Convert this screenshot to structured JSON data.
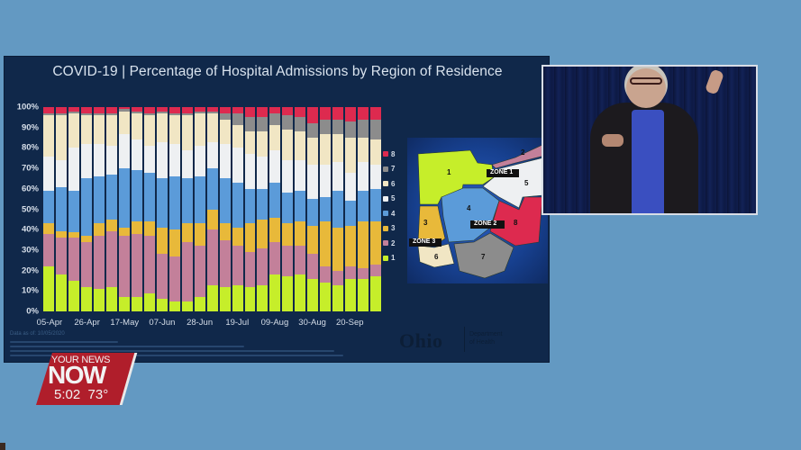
{
  "broadcast": {
    "bug_line1": "YOUR NEWS",
    "bug_line2": "NOW",
    "time": "5:02",
    "temperature": "73°",
    "bug_color": "#b01e2b",
    "background_color": "#6399c2"
  },
  "slide": {
    "title": "COVID-19 | Percentage of Hospital Admissions by Region of Residence",
    "data_as_of": "Data as of: 10/05/2020",
    "logo_text": "Ohio",
    "logo_subtext_line1": "Department",
    "logo_subtext_line2": "of Health"
  },
  "legend": {
    "items": [
      {
        "label": "8",
        "color": "#dd2a4f"
      },
      {
        "label": "7",
        "color": "#8c8c8c"
      },
      {
        "label": "6",
        "color": "#f1e6c4"
      },
      {
        "label": "5",
        "color": "#eef0f2"
      },
      {
        "label": "4",
        "color": "#5b9bd9"
      },
      {
        "label": "3",
        "color": "#e8b93a"
      },
      {
        "label": "2",
        "color": "#c3809a"
      },
      {
        "label": "1",
        "color": "#c6ee2a"
      }
    ]
  },
  "map": {
    "zone_labels": [
      "ZONE 1",
      "ZONE 2",
      "ZONE 3"
    ],
    "region_numbers": [
      "1",
      "2",
      "3",
      "4",
      "5",
      "6",
      "7",
      "8"
    ]
  },
  "chart_data": {
    "type": "bar",
    "stacked": true,
    "title": "COVID-19 | Percentage of Hospital Admissions by Region of Residence",
    "xlabel": "",
    "ylabel": "",
    "ylim": [
      0,
      100
    ],
    "y_ticks": [
      "0%",
      "10%",
      "20%",
      "30%",
      "40%",
      "50%",
      "60%",
      "70%",
      "80%",
      "90%",
      "100%"
    ],
    "x_tick_labels": [
      "05-Apr",
      "26-Apr",
      "17-May",
      "07-Jun",
      "28-Jun",
      "19-Jul",
      "09-Aug",
      "30-Aug",
      "20-Sep"
    ],
    "categories": [
      "05-Apr",
      "12-Apr",
      "19-Apr",
      "26-Apr",
      "03-May",
      "10-May",
      "17-May",
      "24-May",
      "31-May",
      "07-Jun",
      "14-Jun",
      "21-Jun",
      "28-Jun",
      "05-Jul",
      "12-Jul",
      "19-Jul",
      "26-Jul",
      "02-Aug",
      "09-Aug",
      "16-Aug",
      "23-Aug",
      "30-Aug",
      "06-Sep",
      "13-Sep",
      "20-Sep",
      "27-Sep",
      "04-Oct"
    ],
    "legend_position": "right",
    "grid": false,
    "series": [
      {
        "name": "1",
        "color": "#c6ee2a",
        "values": [
          22,
          18,
          15,
          12,
          11,
          12,
          7,
          7,
          9,
          6,
          5,
          5,
          7,
          13,
          12,
          13,
          12,
          13,
          18,
          17,
          18,
          16,
          14,
          13,
          16,
          16,
          17
        ]
      },
      {
        "name": "2",
        "color": "#c3809a",
        "values": [
          16,
          18,
          21,
          22,
          26,
          27,
          30,
          31,
          28,
          22,
          22,
          29,
          25,
          27,
          23,
          19,
          17,
          18,
          16,
          15,
          14,
          12,
          8,
          7,
          6,
          5,
          6
        ]
      },
      {
        "name": "3",
        "color": "#e8b93a",
        "values": [
          5,
          3,
          3,
          3,
          6,
          6,
          4,
          6,
          7,
          13,
          13,
          9,
          11,
          10,
          8,
          9,
          14,
          14,
          12,
          11,
          12,
          14,
          22,
          21,
          20,
          23,
          21
        ]
      },
      {
        "name": "4",
        "color": "#5b9bd9",
        "values": [
          16,
          22,
          20,
          28,
          23,
          22,
          29,
          25,
          24,
          24,
          26,
          22,
          23,
          20,
          22,
          22,
          17,
          15,
          17,
          15,
          15,
          13,
          12,
          18,
          12,
          15,
          16
        ]
      },
      {
        "name": "5",
        "color": "#eef0f2",
        "values": [
          17,
          13,
          21,
          17,
          16,
          14,
          17,
          15,
          13,
          18,
          16,
          14,
          15,
          13,
          17,
          17,
          17,
          16,
          16,
          16,
          15,
          17,
          16,
          14,
          14,
          14,
          12
        ]
      },
      {
        "name": "6",
        "color": "#f1e6c4",
        "values": [
          20,
          22,
          17,
          14,
          14,
          15,
          11,
          13,
          15,
          14,
          14,
          17,
          16,
          14,
          12,
          11,
          11,
          12,
          12,
          15,
          14,
          13,
          15,
          14,
          17,
          12,
          12
        ]
      },
      {
        "name": "7",
        "color": "#8c8c8c",
        "values": [
          1,
          1,
          1,
          1,
          1,
          1,
          1,
          1,
          1,
          1,
          1,
          1,
          1,
          1,
          3,
          6,
          7,
          7,
          6,
          7,
          7,
          7,
          7,
          7,
          8,
          9,
          10
        ]
      },
      {
        "name": "8",
        "color": "#dd2a4f",
        "values": [
          3,
          3,
          2,
          3,
          3,
          3,
          1,
          2,
          3,
          2,
          3,
          3,
          2,
          2,
          3,
          3,
          5,
          5,
          3,
          4,
          5,
          8,
          6,
          6,
          7,
          6,
          6
        ]
      }
    ]
  }
}
